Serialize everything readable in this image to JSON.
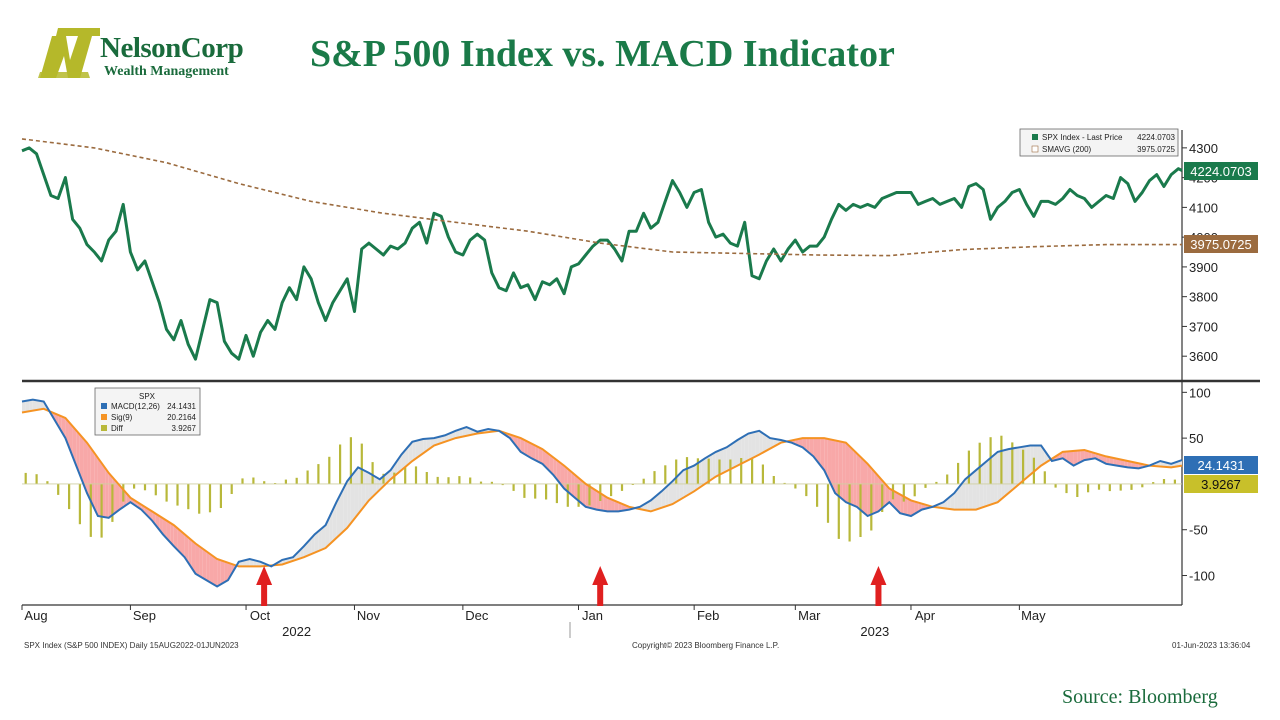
{
  "header": {
    "logo": {
      "name": "NelsonCorp",
      "sub": "Wealth Management"
    },
    "title": "S&P 500 Index vs. MACD Indicator"
  },
  "source_note": "Source:  Bloomberg",
  "footer": {
    "left": "SPX Index (S&P 500 INDEX)  Daily 15AUG2022-01JUN2023",
    "center": "Copyright© 2023 Bloomberg Finance L.P.",
    "right": "01-Jun-2023 13:36:04"
  },
  "colors": {
    "price": "#1a7a4c",
    "smavg": "#9b6b3f",
    "macd": "#2e6fb5",
    "signal": "#f59323",
    "diff": "#b8b83a",
    "fill_up": "#e3e3e3",
    "fill_down": "#f8a8a8",
    "arrow": "#e02020",
    "axis": "#333333"
  },
  "chart_data": [
    {
      "type": "line",
      "title": "",
      "series": [
        {
          "name": "SPX Index - Last Price",
          "last": "4224.0703"
        },
        {
          "name": "SMAVG (200)",
          "last": "3975.0725"
        }
      ],
      "x_months": [
        "Aug",
        "Sep",
        "Oct",
        "Nov",
        "Dec",
        "Jan",
        "Feb",
        "Mar",
        "Apr",
        "May"
      ],
      "x_years": [
        "2022",
        "2023"
      ],
      "y_ticks": [
        3600,
        3700,
        3800,
        3900,
        4000,
        4100,
        4200,
        4300
      ],
      "ylim": [
        3520,
        4360
      ],
      "price_t": [
        0,
        2,
        4,
        6,
        8,
        10,
        12,
        14,
        16,
        18,
        20,
        22,
        24,
        26,
        28,
        30,
        32,
        34,
        36,
        38,
        40,
        42,
        44,
        46,
        48,
        50,
        52,
        54,
        56,
        58,
        60,
        62,
        64,
        66,
        68,
        70,
        72,
        74,
        76,
        78,
        80,
        82,
        84,
        86,
        88,
        90,
        92,
        94,
        96,
        98,
        100,
        102,
        104,
        106,
        108,
        110,
        112,
        114,
        116,
        118,
        120,
        122,
        124,
        126,
        128,
        130,
        132,
        134,
        136,
        138,
        140,
        142,
        144,
        146,
        148,
        150,
        152,
        154,
        156,
        158,
        160,
        162,
        164,
        166,
        168,
        170,
        172,
        174,
        176,
        178,
        180,
        182,
        184,
        186,
        188,
        190,
        192,
        194,
        196,
        198,
        200,
        202,
        204
      ],
      "price_v": [
        4290,
        4300,
        4280,
        4210,
        4140,
        4130,
        4200,
        4060,
        4030,
        3975,
        3950,
        3920,
        3990,
        4020,
        4110,
        3950,
        3890,
        3920,
        3850,
        3780,
        3690,
        3655,
        3720,
        3640,
        3590,
        3690,
        3790,
        3780,
        3650,
        3610,
        3590,
        3670,
        3600,
        3680,
        3720,
        3690,
        3780,
        3830,
        3790,
        3900,
        3860,
        3780,
        3720,
        3780,
        3820,
        3860,
        3750,
        3960,
        3980,
        3960,
        3940,
        3970,
        3960,
        3980,
        4030,
        4050,
        3980,
        4080,
        4070,
        4000,
        3950,
        3940,
        3990,
        4010,
        3990,
        3880,
        3830,
        3820,
        3880,
        3830,
        3840,
        3790,
        3850,
        3840,
        3860,
        3810,
        3900,
        3910,
        3940,
        3970,
        3990,
        3990,
        3960,
        3920,
        4020,
        4020,
        4080,
        4030,
        4050,
        4120,
        4190,
        4150,
        4100,
        4150,
        4160,
        4050,
        4000,
        4010,
        3980,
        3970,
        4050,
        3870,
        3860
      ],
      "price2_t": [
        206,
        208,
        210,
        212,
        214,
        216,
        218,
        220,
        222,
        224,
        226,
        228,
        230,
        232,
        234,
        236,
        238,
        240,
        242,
        244,
        246,
        248,
        250,
        252,
        254,
        256,
        258,
        260,
        262,
        264,
        266,
        268,
        270,
        272,
        274,
        276,
        278,
        280,
        282,
        284,
        286,
        288,
        290,
        292,
        294,
        296,
        298,
        300,
        302,
        304,
        306,
        308,
        310,
        312,
        314,
        316,
        318,
        320,
        321
      ],
      "price2_v": [
        3920,
        3960,
        3920,
        3960,
        3990,
        3950,
        3970,
        3970,
        4000,
        4060,
        4110,
        4090,
        4110,
        4100,
        4110,
        4100,
        4130,
        4140,
        4150,
        4150,
        4150,
        4110,
        4120,
        4130,
        4110,
        4120,
        4130,
        4100,
        4170,
        4180,
        4160,
        4060,
        4100,
        4120,
        4150,
        4160,
        4110,
        4070,
        4120,
        4120,
        4110,
        4130,
        4160,
        4140,
        4130,
        4100,
        4120,
        4140,
        4130,
        4200,
        4180,
        4120,
        4150,
        4190,
        4210,
        4170,
        4210,
        4230,
        4224
      ],
      "sma_t": [
        0,
        20,
        40,
        60,
        80,
        100,
        120,
        140,
        160,
        180,
        200,
        220,
        240,
        260,
        280,
        300,
        321
      ],
      "sma_v": [
        4330,
        4300,
        4250,
        4180,
        4120,
        4080,
        4050,
        4020,
        3980,
        3950,
        3945,
        3940,
        3938,
        3958,
        3968,
        3975,
        3975
      ]
    },
    {
      "type": "bar",
      "title": "SPX",
      "series": [
        {
          "name": "MACD(12,26)",
          "last": "24.1431"
        },
        {
          "name": "Sig(9)",
          "last": "20.2164"
        },
        {
          "name": "Diff",
          "last": "3.9267"
        }
      ],
      "y_ticks": [
        -100,
        -50,
        50,
        100
      ],
      "ylim": [
        -130,
        108
      ],
      "macd_t": [
        0,
        3,
        6,
        9,
        12,
        15,
        18,
        21,
        24,
        27,
        30,
        33,
        36,
        39,
        42,
        45,
        48,
        51,
        54,
        57,
        60,
        63,
        66,
        69,
        72,
        75,
        78,
        81,
        84,
        87,
        90,
        93,
        96,
        99,
        102,
        105,
        108,
        111,
        114,
        117,
        120,
        123,
        126,
        129,
        132,
        135,
        138,
        141,
        144,
        147,
        150,
        153,
        156,
        159,
        162,
        165,
        168,
        171,
        174,
        177,
        180,
        183,
        186,
        189,
        192,
        195,
        198,
        201,
        204,
        207,
        210,
        213,
        216,
        219,
        222,
        225,
        228,
        231,
        234,
        237,
        240,
        243,
        246,
        249,
        252,
        255,
        258,
        261,
        264,
        267,
        270,
        273,
        276,
        279,
        282,
        285,
        288,
        291,
        294,
        297,
        300,
        303,
        306,
        309,
        312,
        315,
        318,
        321
      ],
      "macd_v": [
        90,
        92,
        90,
        70,
        50,
        20,
        -10,
        -35,
        -37,
        -28,
        -20,
        -28,
        -40,
        -55,
        -68,
        -80,
        -98,
        -105,
        -112,
        -105,
        -85,
        -82,
        -85,
        -90,
        -83,
        -80,
        -68,
        -55,
        -45,
        -20,
        3,
        18,
        12,
        5,
        15,
        32,
        46,
        49,
        50,
        53,
        58,
        62,
        57,
        60,
        58,
        50,
        35,
        28,
        22,
        10,
        -5,
        -15,
        -25,
        -28,
        -30,
        -30,
        -28,
        -25,
        -18,
        -8,
        3,
        15,
        20,
        28,
        35,
        40,
        48,
        55,
        58,
        50,
        48,
        45,
        40,
        30,
        15,
        -10,
        -20,
        -25,
        -35,
        -30,
        -20,
        -32,
        -35,
        -28,
        -25,
        -20,
        -10,
        5,
        15,
        25,
        35,
        38,
        40,
        42,
        42,
        25,
        28,
        20,
        26,
        28,
        22,
        20,
        18,
        17,
        20,
        25,
        22,
        26
      ],
      "sig_t": [
        0,
        6,
        12,
        18,
        24,
        30,
        36,
        42,
        48,
        54,
        60,
        66,
        72,
        78,
        84,
        90,
        96,
        102,
        108,
        114,
        120,
        126,
        132,
        138,
        144,
        150,
        156,
        162,
        168,
        174,
        180,
        186,
        192,
        198,
        204,
        210,
        216,
        222,
        228,
        234,
        240,
        246,
        252,
        258,
        264,
        270,
        276,
        282,
        288,
        294,
        300,
        306,
        312,
        318,
        321
      ],
      "sig_v": [
        78,
        82,
        72,
        45,
        12,
        -15,
        -30,
        -45,
        -65,
        -82,
        -90,
        -90,
        -88,
        -80,
        -70,
        -48,
        -18,
        5,
        25,
        42,
        50,
        55,
        58,
        50,
        38,
        20,
        0,
        -15,
        -25,
        -30,
        -22,
        -8,
        8,
        20,
        32,
        45,
        50,
        50,
        45,
        22,
        -5,
        -18,
        -25,
        -28,
        -28,
        -20,
        0,
        20,
        35,
        37,
        30,
        25,
        20,
        18,
        20
      ]
    }
  ]
}
